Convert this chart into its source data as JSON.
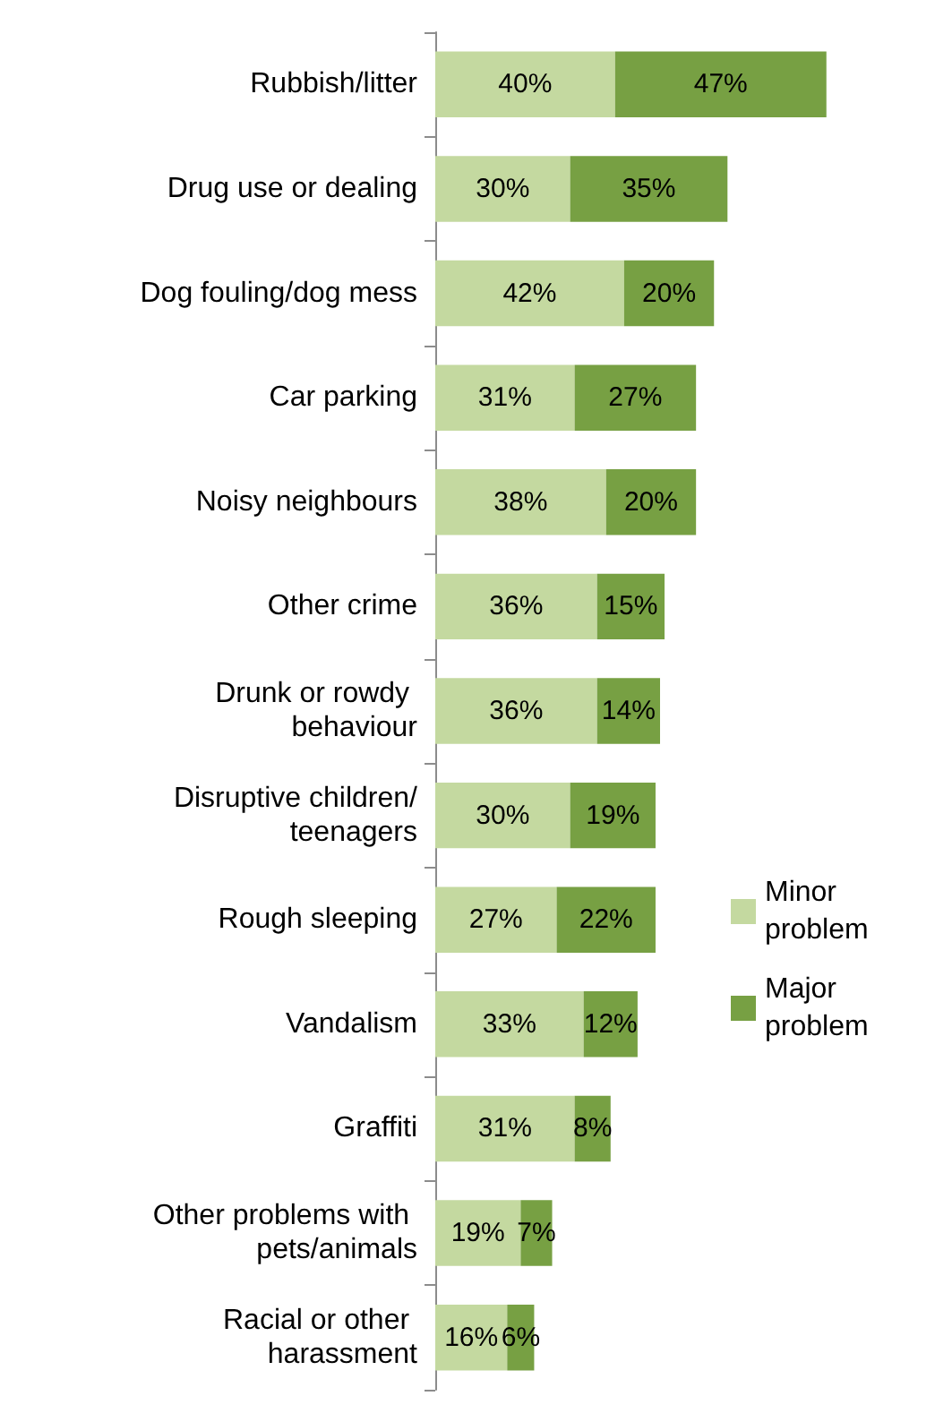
{
  "chart_data": {
    "type": "bar",
    "orientation": "horizontal",
    "stacked": true,
    "legend": "right",
    "categories": [
      "Rubbish/litter",
      "Drug use or dealing",
      "Dog fouling/dog mess",
      "Car parking",
      "Noisy neighbours",
      "Other crime",
      "Drunk or rowdy behaviour",
      "Disruptive children/teenagers",
      "Rough sleeping",
      "Vandalism",
      "Graffiti",
      "Other problems with pets/animals",
      "Racial or other harassment"
    ],
    "series": [
      {
        "name": "Minor problem",
        "color": "#c4d9a0",
        "values": [
          40,
          30,
          42,
          31,
          38,
          36,
          36,
          30,
          27,
          33,
          31,
          19,
          16
        ],
        "value_labels": [
          "40%",
          "30%",
          "42%",
          "31%",
          "38%",
          "36%",
          "36%",
          "30%",
          "27%",
          "33%",
          "31%",
          "19%",
          "16%"
        ]
      },
      {
        "name": "Major problem",
        "color": "#77a043",
        "values": [
          47,
          35,
          20,
          27,
          20,
          15,
          14,
          19,
          22,
          12,
          8,
          7,
          6
        ],
        "value_labels": [
          "47%",
          "35%",
          "20%",
          "27%",
          "20%",
          "15%",
          "14%",
          "19%",
          "22%",
          "12%",
          "8%",
          "7%",
          "6%"
        ]
      }
    ]
  }
}
